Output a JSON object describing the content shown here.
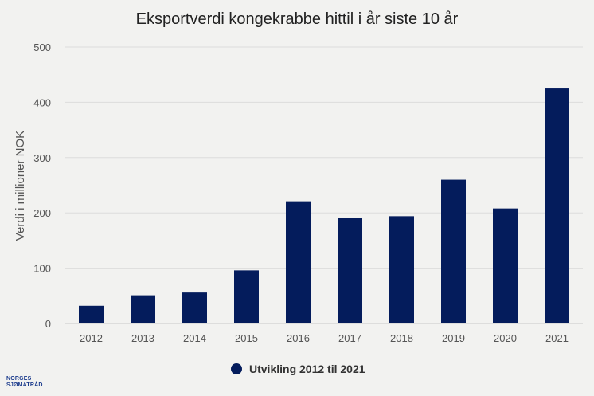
{
  "chart_data": {
    "type": "bar",
    "title": "Eksportverdi kongekrabbe hittil i år siste 10 år",
    "ylabel": "Verdi i millioner NOK",
    "xlabel": "",
    "categories": [
      "2012",
      "2013",
      "2014",
      "2015",
      "2016",
      "2017",
      "2018",
      "2019",
      "2020",
      "2021"
    ],
    "series": [
      {
        "name": "Utvikling 2012 til 2021",
        "values": [
          32,
          51,
          56,
          96,
          221,
          191,
          194,
          260,
          208,
          425
        ]
      }
    ],
    "ylim": [
      0,
      500
    ],
    "yticks": [
      0,
      100,
      200,
      300,
      400,
      500
    ],
    "grid": true,
    "legend_position": "bottom-center",
    "colors": {
      "bar": "#041c5c",
      "background": "#f2f2f0",
      "grid": "#dcdcdc",
      "text": "#333333"
    }
  },
  "logo": {
    "line1": "NORGES",
    "line2": "SJØMATRÅD"
  }
}
